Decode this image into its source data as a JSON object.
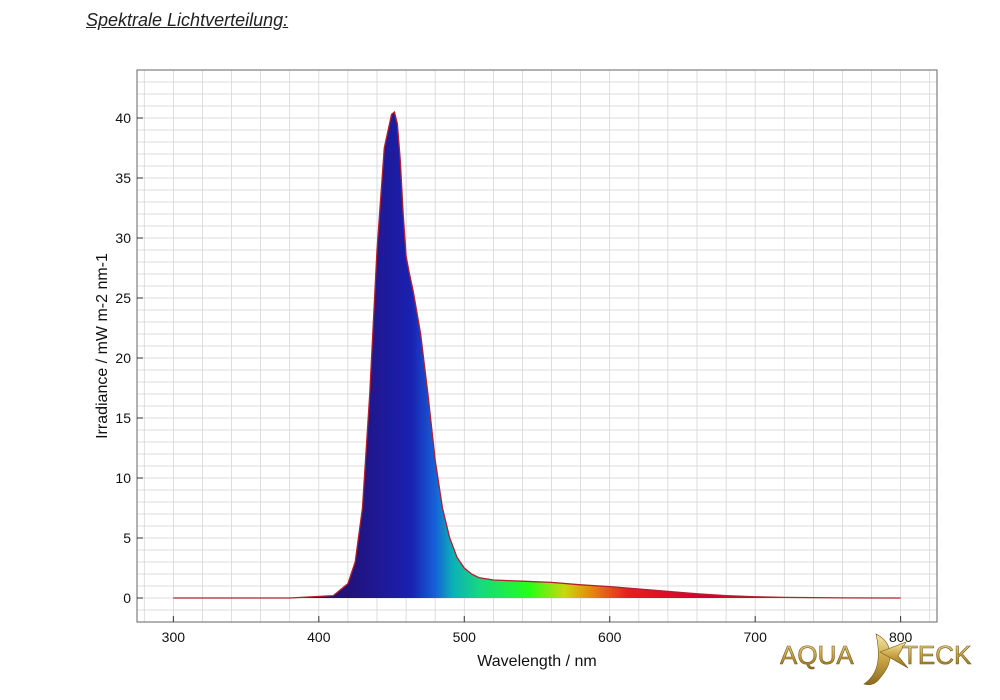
{
  "page": {
    "heading": "Spektrale Lichtverteilung:"
  },
  "logo": {
    "left_text": "AQUA",
    "right_text": "TECK"
  },
  "colors": {
    "curve": "#b02030",
    "grid": "#d0d0d0",
    "frame": "#666666",
    "spectrum_violet": "#22127a",
    "spectrum_blue": "#1a20b0",
    "spectrum_green": "#25ff18",
    "spectrum_orange": "#e8840f",
    "spectrum_red": "#d80030"
  },
  "chart_data": {
    "type": "area",
    "title": "",
    "xlabel": "Wavelength / nm",
    "ylabel": "Irradiance / mW m-2 nm-1",
    "xlim": [
      275,
      825
    ],
    "ylim": [
      -2,
      44
    ],
    "xticks": [
      300,
      400,
      500,
      600,
      700,
      800
    ],
    "yticks": [
      0,
      5,
      10,
      15,
      20,
      25,
      30,
      35,
      40
    ],
    "grid": true,
    "fill": "visible spectrum gradient",
    "series": [
      {
        "x": [
          300,
          380,
          410,
          420,
          425,
          430,
          435,
          440,
          445,
          450,
          452,
          454,
          456,
          458,
          460,
          462,
          465,
          470,
          475,
          480,
          485,
          490,
          495,
          500,
          505,
          510,
          520,
          540,
          560,
          580,
          600,
          620,
          640,
          660,
          680,
          700,
          720,
          760,
          800
        ],
        "y": [
          0,
          0,
          0.2,
          1.2,
          3,
          7.5,
          17,
          29,
          37.5,
          40.3,
          40.5,
          39.5,
          36.5,
          32,
          28.5,
          27.2,
          25.5,
          22,
          17,
          11.5,
          7.5,
          5,
          3.4,
          2.5,
          2.0,
          1.7,
          1.5,
          1.4,
          1.3,
          1.1,
          0.95,
          0.75,
          0.55,
          0.35,
          0.2,
          0.1,
          0.05,
          0.01,
          0
        ]
      }
    ]
  }
}
